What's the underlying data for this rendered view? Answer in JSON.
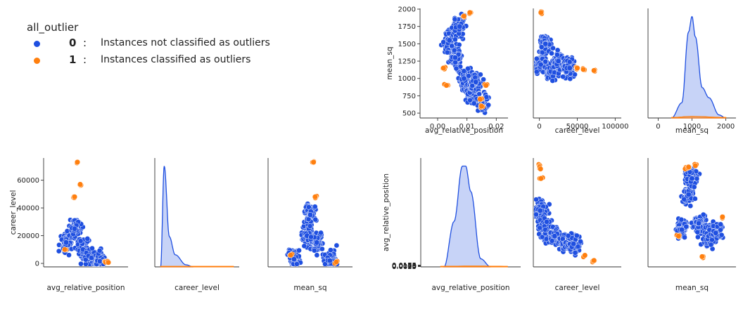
{
  "legend": {
    "title": "all_outlier",
    "items": [
      {
        "code": "0",
        "colon": ":",
        "label": "Instances not classified as outliers",
        "color": "#1f4fe0"
      },
      {
        "code": "1",
        "colon": ":",
        "label": "Instances classified as outliers",
        "color": "#ff7f0e"
      }
    ]
  },
  "chart_data": [
    {
      "type": "scatter",
      "xlabel": "avg_relative_position",
      "ylabel": "mean_sq",
      "xlim": [
        -0.006,
        0.024
      ],
      "ylim": [
        430,
        2010
      ],
      "xticks": [
        0.0,
        0.01,
        0.02
      ],
      "xtick_labels": [
        "0.00",
        "0.01",
        "0.02"
      ],
      "yticks": [
        500,
        750,
        1000,
        1250,
        1500,
        1750,
        2000
      ],
      "ytick_labels": [
        "500",
        "750",
        "1000",
        "1250",
        "1500",
        "1750",
        "2000"
      ],
      "series": [
        {
          "name": "0",
          "x": [
            0.004,
            0.006,
            0.0075,
            0.009,
            0.011,
            0.013,
            0.015
          ],
          "y": [
            1550,
            1300,
            1750,
            1000,
            800,
            950,
            650
          ]
        },
        {
          "name": "1",
          "x": [
            0.002,
            0.003,
            0.0145,
            0.015,
            0.0165,
            0.011,
            0.009
          ],
          "y": [
            1150,
            900,
            700,
            600,
            900,
            1950,
            1900
          ]
        }
      ]
    },
    {
      "type": "scatter",
      "xlabel": "career_level",
      "ylabel": "",
      "xlim": [
        -8000,
        108000
      ],
      "ylim": [
        430,
        2010
      ],
      "xticks": [
        0,
        50000,
        100000
      ],
      "xtick_labels": [
        "0",
        "50000",
        "100000"
      ],
      "yticks": [],
      "ytick_labels": [],
      "series": [
        {
          "name": "0",
          "x": [
            2000,
            8000,
            15000,
            25000,
            40000
          ],
          "y": [
            1200,
            1500,
            1100,
            1250,
            1150
          ]
        },
        {
          "name": "1",
          "x": [
            50000,
            58000,
            72000,
            2000
          ],
          "y": [
            1150,
            1130,
            1115,
            1950
          ]
        }
      ]
    },
    {
      "type": "area",
      "xlabel": "mean_sq",
      "ylabel": "",
      "xlim": [
        -300,
        2300
      ],
      "ylim": [
        0,
        1.08
      ],
      "xticks": [
        0,
        1000,
        2000
      ],
      "xtick_labels": [
        "0",
        "1000",
        "2000"
      ],
      "yticks": [],
      "ytick_labels": [],
      "series": [
        {
          "name": "0",
          "x": [
            400,
            700,
            900,
            1000,
            1100,
            1300,
            1500,
            1800,
            2000
          ],
          "y": [
            0.0,
            0.15,
            0.85,
            1.0,
            0.8,
            0.3,
            0.2,
            0.03,
            0.0
          ]
        },
        {
          "name": "1",
          "x": [
            400,
            1000,
            2000
          ],
          "y": [
            0.005,
            0.015,
            0.005
          ]
        }
      ]
    },
    {
      "type": "scatter",
      "xlabel": "avg_relative_position",
      "ylabel": "career_level",
      "xlim": [
        -0.006,
        0.024
      ],
      "ylim": [
        -2500,
        76000
      ],
      "xticks": [],
      "xtick_labels": [],
      "yticks": [
        0,
        20000,
        40000,
        60000
      ],
      "ytick_labels": [
        "0",
        "20000",
        "40000",
        "60000"
      ],
      "series": [
        {
          "name": "0",
          "x": [
            0.002,
            0.005,
            0.008,
            0.011,
            0.014
          ],
          "y": [
            15000,
            25000,
            10000,
            4000,
            1500
          ]
        },
        {
          "name": "1",
          "x": [
            0.006,
            0.007,
            0.005,
            0.0015,
            0.016,
            0.017
          ],
          "y": [
            73000,
            57000,
            48000,
            10000,
            900,
            700
          ]
        }
      ]
    },
    {
      "type": "area",
      "xlabel": "career_level",
      "ylabel": "",
      "xlim": [
        -8000,
        108000
      ],
      "ylim": [
        0,
        1.08
      ],
      "xticks": [],
      "xtick_labels": [],
      "yticks": [],
      "ytick_labels": [],
      "series": [
        {
          "name": "0",
          "x": [
            0,
            5000,
            12000,
            20000,
            35000,
            45000
          ],
          "y": [
            0.0,
            1.0,
            0.3,
            0.12,
            0.02,
            0.0
          ]
        },
        {
          "name": "1",
          "x": [
            0,
            50000,
            100000
          ],
          "y": [
            0.005,
            0.005,
            0.005
          ]
        }
      ]
    },
    {
      "type": "scatter",
      "xlabel": "mean_sq",
      "ylabel": "",
      "xlim": [
        -300,
        2300
      ],
      "ylim": [
        -2500,
        76000
      ],
      "xticks": [],
      "xtick_labels": [],
      "yticks": [],
      "ytick_labels": [],
      "series": [
        {
          "name": "0",
          "x": [
            500,
            900,
            1000,
            1200,
            1600
          ],
          "y": [
            3000,
            20000,
            35000,
            15000,
            2000
          ]
        },
        {
          "name": "1",
          "x": [
            1100,
            1150,
            400,
            1800
          ],
          "y": [
            73000,
            48000,
            6000,
            1000
          ]
        }
      ]
    },
    {
      "type": "area",
      "xlabel": "avg_relative_position",
      "ylabel": "avg_relative_position",
      "xlim": [
        -0.006,
        0.024
      ],
      "ylim": [
        0,
        1.08
      ],
      "xticks": [],
      "xtick_labels": [],
      "yticks": [
        0.0025,
        0.005,
        0.0075,
        0.01,
        0.0125,
        0.015,
        0.0175
      ],
      "ytick_labels": [
        "0.0025",
        "0.0050",
        "0.0075",
        "0.0100",
        "0.0125",
        "0.0150",
        "0.0175"
      ],
      "series": [
        {
          "name": "0",
          "x": [
            0.001,
            0.004,
            0.0065,
            0.0075,
            0.009,
            0.012,
            0.015
          ],
          "y": [
            0.0,
            0.45,
            1.0,
            1.0,
            0.75,
            0.08,
            0.0
          ]
        },
        {
          "name": "1",
          "x": [
            0.0,
            0.01,
            0.02
          ],
          "y": [
            0.005,
            0.008,
            0.005
          ]
        }
      ]
    },
    {
      "type": "scatter",
      "xlabel": "career_level",
      "ylabel": "",
      "xlim": [
        -8000,
        108000
      ],
      "ylim": [
        0.0012,
        0.0182
      ],
      "xticks": [],
      "xtick_labels": [],
      "yticks": [],
      "ytick_labels": [],
      "series": [
        {
          "name": "0",
          "x": [
            1000,
            8000,
            20000,
            35000,
            45000
          ],
          "y": [
            0.01,
            0.007,
            0.006,
            0.005,
            0.0048
          ]
        },
        {
          "name": "1",
          "x": [
            500,
            1500,
            2000,
            60000,
            72000
          ],
          "y": [
            0.017,
            0.0165,
            0.015,
            0.003,
            0.0022
          ]
        }
      ]
    },
    {
      "type": "scatter",
      "xlabel": "mean_sq",
      "ylabel": "",
      "xlim": [
        -300,
        2300
      ],
      "ylim": [
        0.0012,
        0.0182
      ],
      "xticks": [],
      "xtick_labels": [],
      "yticks": [],
      "ytick_labels": [],
      "series": [
        {
          "name": "0",
          "x": [
            700,
            900,
            1000,
            1200,
            1500,
            1700
          ],
          "y": [
            0.007,
            0.0125,
            0.015,
            0.008,
            0.006,
            0.0065
          ]
        },
        {
          "name": "1",
          "x": [
            800,
            900,
            1100,
            1900,
            600,
            1300
          ],
          "y": [
            0.0165,
            0.0168,
            0.017,
            0.009,
            0.006,
            0.0028
          ]
        }
      ]
    }
  ]
}
